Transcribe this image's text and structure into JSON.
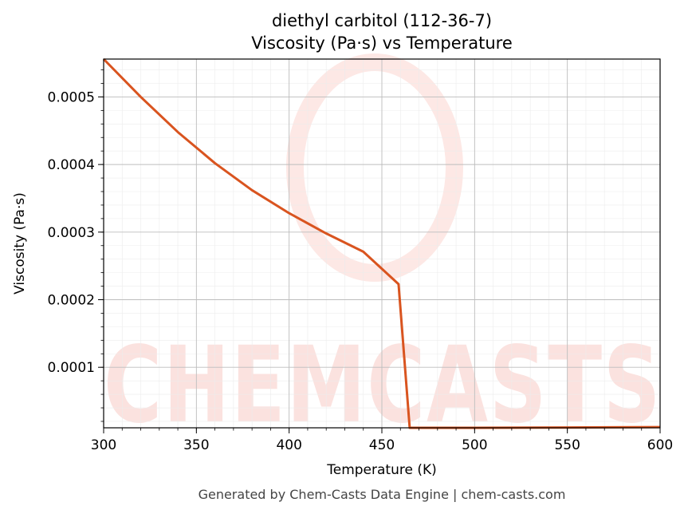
{
  "chart_data": {
    "type": "line",
    "title": "diethyl carbitol (112-36-7)",
    "subtitle": "Viscosity (Pa·s) vs Temperature",
    "xlabel": "Temperature (K)",
    "ylabel": "Viscosity (Pa·s)",
    "xlim": [
      300,
      600
    ],
    "ylim": [
      1.05e-05,
      0.000556
    ],
    "x_ticks": [
      "300",
      "350",
      "400",
      "450",
      "500",
      "550",
      "600"
    ],
    "y_ticks": [
      "0.0001",
      "0.0002",
      "0.0003",
      "0.0004",
      "0.0005"
    ],
    "grid": true,
    "line_color": "#d9541f",
    "series": [
      {
        "x": [
          300,
          320,
          340,
          360,
          380,
          400,
          420,
          440,
          459,
          465,
          500,
          550,
          600
        ],
        "values": [
          0.000556,
          0.0005,
          0.000448,
          0.000402,
          0.000362,
          0.000328,
          0.000298,
          0.000271,
          0.000223,
          1.05e-05,
          1.05e-05,
          1.1e-05,
          1.15e-05
        ]
      }
    ]
  },
  "watermark": {
    "text": "CHEMCASTS",
    "color": "#fbe2df"
  },
  "footer": "Generated by Chem-Casts Data Engine | chem-casts.com"
}
